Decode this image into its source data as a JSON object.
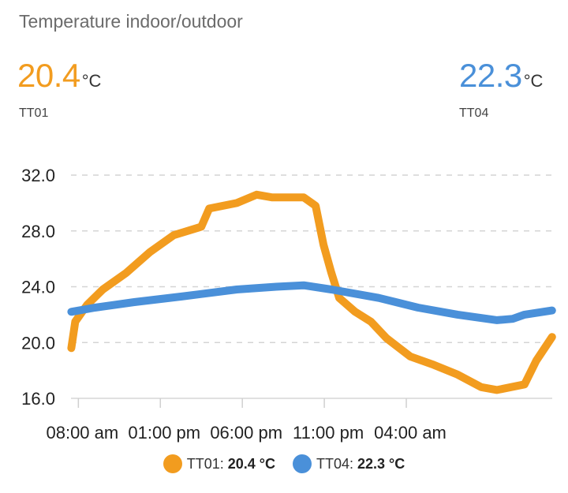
{
  "card": {
    "title": "Temperature indoor/outdoor"
  },
  "readings": [
    {
      "sensor": "TT01",
      "value": "20.4",
      "unit": "°C",
      "color": "#f29c1f"
    },
    {
      "sensor": "TT04",
      "value": "22.3",
      "unit": "°C",
      "color": "#4a90d9"
    }
  ],
  "legend": [
    {
      "label": "TT01: ",
      "value": "20.4 °C",
      "color": "#f29c1f"
    },
    {
      "label": "TT04: ",
      "value": "22.3 °C",
      "color": "#4a90d9"
    }
  ],
  "chart_data": {
    "type": "line",
    "title": "",
    "xlabel": "",
    "ylabel": "",
    "ylim": [
      16,
      32
    ],
    "yticks": [
      "16.0",
      "20.0",
      "24.0",
      "28.0",
      "32.0"
    ],
    "ytick_values": [
      16,
      20,
      24,
      28,
      32
    ],
    "x_unit": "hours since 08:00 am",
    "xlim": [
      -0.45,
      28.9
    ],
    "xticks": [
      "08:00 am",
      "01:00 pm",
      "06:00 pm",
      "11:00 pm",
      "04:00 am"
    ],
    "xtick_values": [
      0,
      5,
      10,
      15,
      20
    ],
    "grid": true,
    "legend_position": "bottom",
    "series": [
      {
        "name": "TT01",
        "color": "#f29c1f",
        "x": [
          -0.43,
          -0.19,
          0.53,
          1.49,
          2.93,
          4.38,
          5.82,
          7.5,
          7.98,
          9.66,
          10.87,
          11.83,
          13.75,
          14.47,
          14.95,
          15.43,
          15.91,
          16.88,
          17.84,
          18.8,
          20.24,
          21.68,
          23.13,
          24.57,
          25.53,
          27.21,
          27.93,
          28.89
        ],
        "y": [
          19.6,
          21.5,
          22.7,
          23.8,
          25.0,
          26.5,
          27.7,
          28.3,
          29.6,
          30.0,
          30.6,
          30.4,
          30.4,
          29.8,
          27.0,
          25.0,
          23.2,
          22.2,
          21.5,
          20.3,
          19.0,
          18.4,
          17.7,
          16.8,
          16.6,
          17.0,
          18.7,
          20.4
        ]
      },
      {
        "name": "TT04",
        "color": "#4a90d9",
        "x": [
          -0.43,
          1.01,
          3.41,
          6.3,
          9.66,
          12.07,
          13.75,
          15.43,
          18.32,
          20.72,
          23.13,
          25.53,
          26.49,
          27.21,
          28.89
        ],
        "y": [
          22.2,
          22.5,
          22.9,
          23.3,
          23.8,
          24.0,
          24.1,
          23.8,
          23.2,
          22.5,
          22.0,
          21.6,
          21.7,
          22.0,
          22.3
        ]
      }
    ]
  }
}
